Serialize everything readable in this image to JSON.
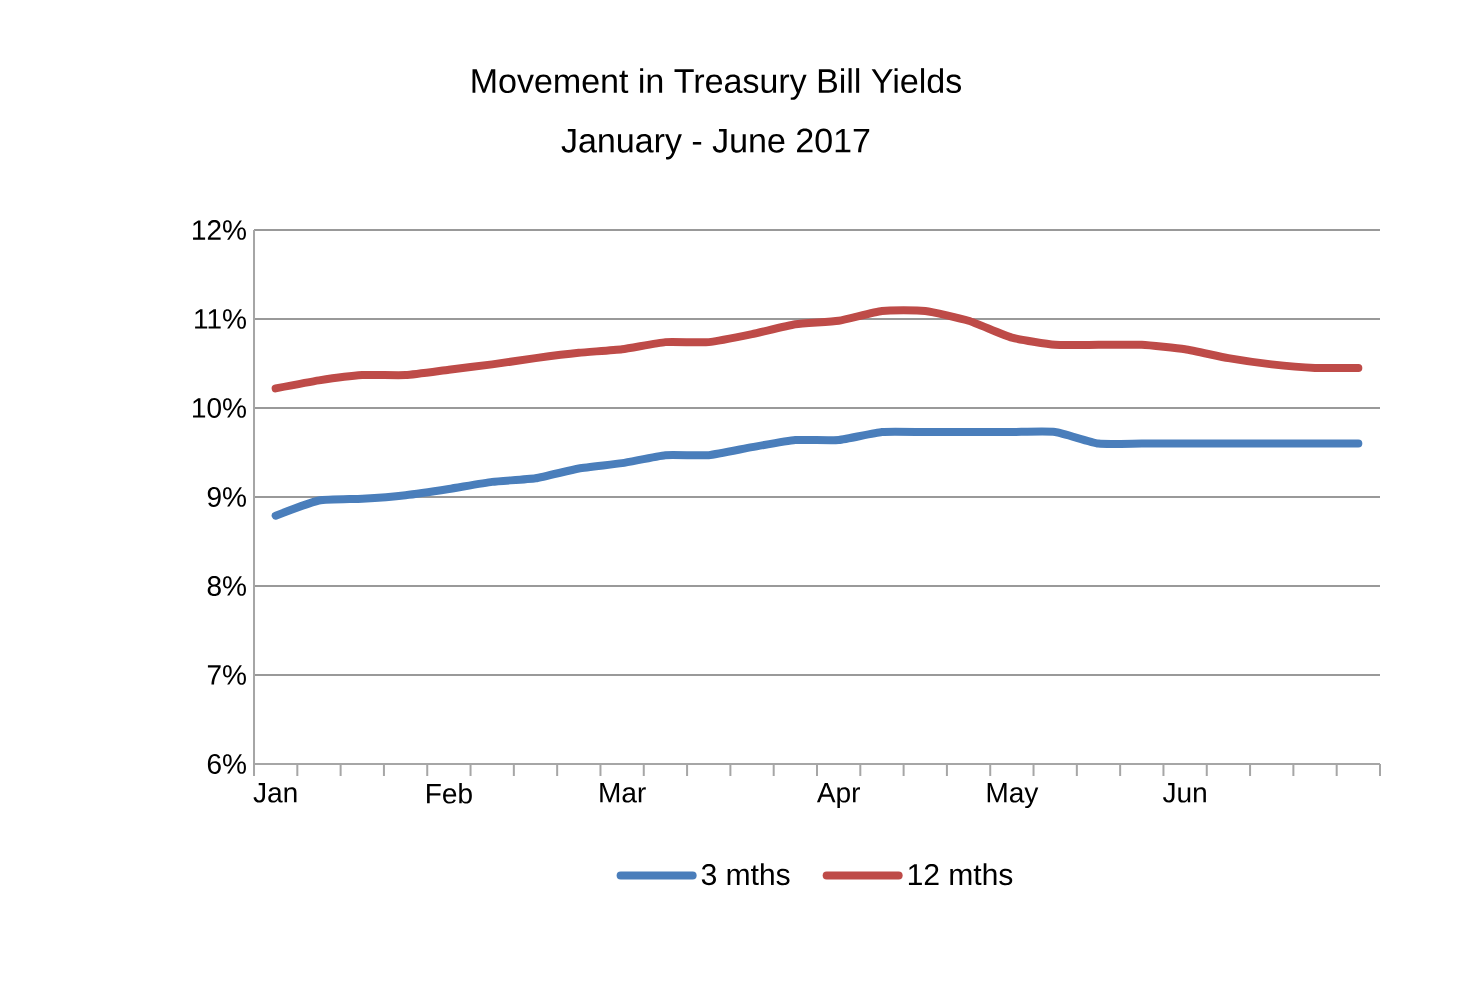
{
  "chart_data": {
    "type": "line",
    "title": "Movement in Treasury Bill Yields",
    "subtitle": "January - June 2017",
    "categories": [
      "Jan",
      null,
      null,
      null,
      "Feb",
      null,
      null,
      null,
      "Mar",
      null,
      null,
      null,
      null,
      "Apr",
      null,
      null,
      null,
      "May",
      null,
      null,
      null,
      "Jun",
      null,
      null,
      null,
      null
    ],
    "series": [
      {
        "name": "3 mths",
        "color": "#4a7ebb",
        "values": [
          8.79,
          8.96,
          8.98,
          9.02,
          9.09,
          9.17,
          9.21,
          9.32,
          9.38,
          9.47,
          9.47,
          9.56,
          9.64,
          9.64,
          9.73,
          9.73,
          9.73,
          9.73,
          9.73,
          9.6,
          9.6,
          9.6,
          9.6,
          9.6,
          9.6,
          9.6
        ]
      },
      {
        "name": "12 mths",
        "color": "#be4b48",
        "values": [
          10.22,
          10.31,
          10.37,
          10.37,
          10.43,
          10.49,
          10.56,
          10.62,
          10.66,
          10.74,
          10.74,
          10.83,
          10.94,
          10.98,
          11.09,
          11.09,
          10.98,
          10.79,
          10.71,
          10.71,
          10.71,
          10.66,
          10.56,
          10.49,
          10.45,
          10.45
        ]
      }
    ],
    "ylim": [
      6,
      12
    ],
    "yticks": [
      {
        "value": 6,
        "label": "6%"
      },
      {
        "value": 7,
        "label": "7%"
      },
      {
        "value": 8,
        "label": "8%"
      },
      {
        "value": 9,
        "label": "9%"
      },
      {
        "value": 10,
        "label": "10%"
      },
      {
        "value": 11,
        "label": "11%"
      },
      {
        "value": 12,
        "label": "12%"
      }
    ],
    "grid": "y",
    "legend": "bottom",
    "marker": "none",
    "line_style": "solid"
  }
}
